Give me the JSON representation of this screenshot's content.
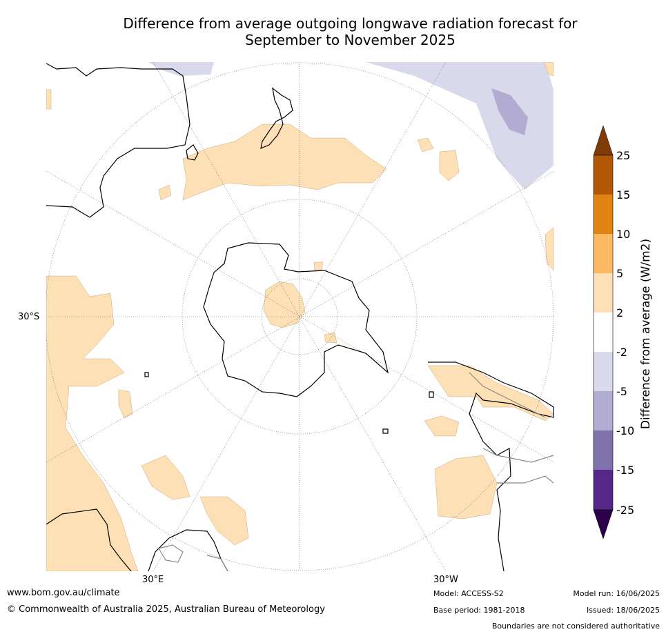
{
  "title": {
    "line1": "Difference from average outgoing longwave radiation forecast for",
    "line2": "September to November 2025"
  },
  "map": {
    "projection": "south polar stereographic",
    "labels": {
      "lat_30s": "30°S",
      "lon_30e": "30°E",
      "lon_30w": "30°W"
    },
    "colors": {
      "land_outline": "#000000",
      "grid": "#666666",
      "boundary": "#888888"
    }
  },
  "colorbar": {
    "label": "Difference from average (W/m2)",
    "ticks": [
      "25",
      "15",
      "10",
      "5",
      "2",
      "-2",
      "-5",
      "-10",
      "-15",
      "-25"
    ],
    "colors": {
      "over": "#7f3b08",
      "15_to_25": "#b35806",
      "10_to_15": "#e08214",
      "5_to_10": "#fdb863",
      "2_to_5": "#fee0b6",
      "-2_to_2": "#ffffff",
      "-5_to_-2": "#d8daeb",
      "-10_to_-5": "#b2abd2",
      "-15_to_-10": "#8073ac",
      "-25_to_-15": "#542788",
      "under": "#2d004b"
    }
  },
  "footer": {
    "website": "www.bom.gov.au/climate",
    "copyright": "© Commonwealth of Australia 2025, Australian Bureau of Meteorology",
    "model": "Model: ACCESS-S2",
    "base_period": "Base period: 1981-2018",
    "model_run": "Model run: 16/06/2025",
    "issued": "Issued: 18/06/2025",
    "disclaimer": "Boundaries are not considered authoritative"
  }
}
